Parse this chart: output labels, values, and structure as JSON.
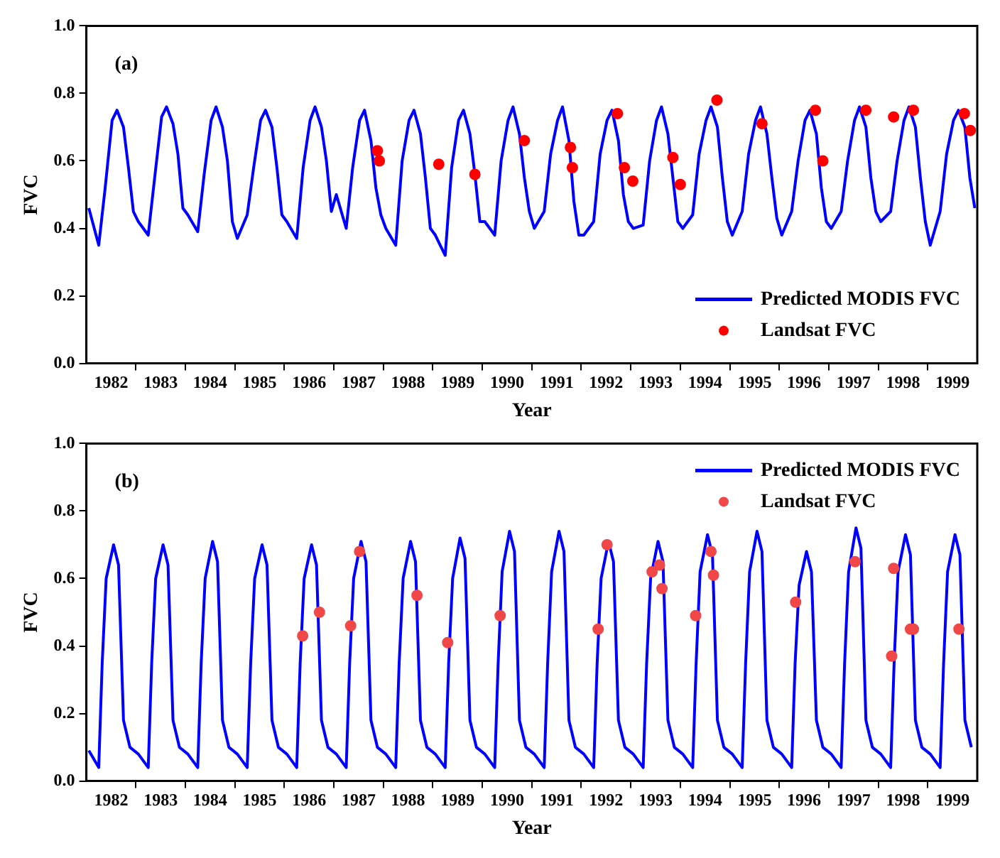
{
  "chart_data": [
    {
      "type": "line",
      "xlabel": "Year",
      "ylabel": "FVC",
      "annotations": [
        "(a)"
      ],
      "xlim": [
        1982,
        2000
      ],
      "ylim": [
        0,
        1
      ],
      "xticks": [
        {
          "value": 1982.5,
          "label": "1982"
        },
        {
          "value": 1983,
          "label": null
        },
        {
          "value": 1983.5,
          "label": "1983"
        },
        {
          "value": 1984,
          "label": null
        },
        {
          "value": 1984.5,
          "label": "1984"
        },
        {
          "value": 1985,
          "label": null
        },
        {
          "value": 1985.5,
          "label": "1985"
        },
        {
          "value": 1986,
          "label": null
        },
        {
          "value": 1986.5,
          "label": "1986"
        },
        {
          "value": 1987,
          "label": null
        },
        {
          "value": 1987.5,
          "label": "1987"
        },
        {
          "value": 1988,
          "label": null
        },
        {
          "value": 1988.5,
          "label": "1988"
        },
        {
          "value": 1989,
          "label": null
        },
        {
          "value": 1989.5,
          "label": "1989"
        },
        {
          "value": 1990,
          "label": null
        },
        {
          "value": 1990.5,
          "label": "1990"
        },
        {
          "value": 1991,
          "label": null
        },
        {
          "value": 1991.5,
          "label": "1991"
        },
        {
          "value": 1992,
          "label": null
        },
        {
          "value": 1992.5,
          "label": "1992"
        },
        {
          "value": 1993,
          "label": null
        },
        {
          "value": 1993.5,
          "label": "1993"
        },
        {
          "value": 1994,
          "label": null
        },
        {
          "value": 1994.5,
          "label": "1994"
        },
        {
          "value": 1995,
          "label": null
        },
        {
          "value": 1995.5,
          "label": "1995"
        },
        {
          "value": 1996,
          "label": null
        },
        {
          "value": 1996.5,
          "label": "1996"
        },
        {
          "value": 1997,
          "label": null
        },
        {
          "value": 1997.5,
          "label": "1997"
        },
        {
          "value": 1998,
          "label": null
        },
        {
          "value": 1998.5,
          "label": "1998"
        },
        {
          "value": 1999,
          "label": null
        },
        {
          "value": 1999.5,
          "label": "1999"
        }
      ],
      "yticks": [
        {
          "value": 0,
          "label": "0.0"
        },
        {
          "value": 0.2,
          "label": "0.2"
        },
        {
          "value": 0.4,
          "label": "0.4"
        },
        {
          "value": 0.6,
          "label": "0.6"
        },
        {
          "value": 0.8,
          "label": "0.8"
        },
        {
          "value": 1,
          "label": "1.0"
        }
      ],
      "grid": false,
      "legend": "bottom right",
      "series": [
        {
          "name": "Predicted MODIS FVC",
          "type": "line",
          "color": "#0000ff",
          "line_style": "solid",
          "x": [
            1982.05,
            1982.25,
            1982.38,
            1982.52,
            1982.62,
            1982.75,
            1982.85,
            1982.95,
            1983.05,
            1983.25,
            1983.38,
            1983.52,
            1983.62,
            1983.75,
            1983.85,
            1983.95,
            1984.05,
            1984.25,
            1984.38,
            1984.52,
            1984.62,
            1984.75,
            1984.85,
            1984.95,
            1985.05,
            1985.25,
            1985.38,
            1985.52,
            1985.62,
            1985.75,
            1985.85,
            1985.95,
            1986.05,
            1986.25,
            1986.38,
            1986.52,
            1986.62,
            1986.75,
            1986.85,
            1986.95,
            1987.05,
            1987.25,
            1987.38,
            1987.52,
            1987.62,
            1987.75,
            1987.85,
            1987.95,
            1988.05,
            1988.25,
            1988.38,
            1988.52,
            1988.62,
            1988.75,
            1988.85,
            1988.95,
            1989.05,
            1989.25,
            1989.38,
            1989.52,
            1989.62,
            1989.75,
            1989.85,
            1989.95,
            1990.05,
            1990.25,
            1990.38,
            1990.52,
            1990.62,
            1990.75,
            1990.85,
            1990.95,
            1991.05,
            1991.25,
            1991.38,
            1991.52,
            1991.62,
            1991.75,
            1991.85,
            1991.95,
            1992.05,
            1992.25,
            1992.38,
            1992.52,
            1992.62,
            1992.75,
            1992.85,
            1992.95,
            1993.05,
            1993.25,
            1993.38,
            1993.52,
            1993.62,
            1993.75,
            1993.85,
            1993.95,
            1994.05,
            1994.25,
            1994.38,
            1994.52,
            1994.62,
            1994.75,
            1994.85,
            1994.95,
            1995.05,
            1995.25,
            1995.38,
            1995.52,
            1995.62,
            1995.75,
            1995.85,
            1995.95,
            1996.05,
            1996.25,
            1996.38,
            1996.52,
            1996.62,
            1996.75,
            1996.85,
            1996.95,
            1997.05,
            1997.25,
            1997.38,
            1997.52,
            1997.62,
            1997.75,
            1997.85,
            1997.95,
            1998.05,
            1998.25,
            1998.38,
            1998.52,
            1998.62,
            1998.75,
            1998.85,
            1998.95,
            1999.05,
            1999.25,
            1999.38,
            1999.52,
            1999.62,
            1999.75,
            1999.85,
            1999.95
          ],
          "values": [
            0.46,
            0.35,
            0.52,
            0.72,
            0.75,
            0.7,
            0.58,
            0.45,
            0.42,
            0.38,
            0.55,
            0.73,
            0.76,
            0.71,
            0.62,
            0.46,
            0.44,
            0.39,
            0.56,
            0.72,
            0.76,
            0.7,
            0.6,
            0.42,
            0.37,
            0.44,
            0.58,
            0.72,
            0.75,
            0.7,
            0.58,
            0.44,
            0.42,
            0.37,
            0.58,
            0.72,
            0.76,
            0.7,
            0.6,
            0.45,
            0.5,
            0.4,
            0.58,
            0.72,
            0.75,
            0.66,
            0.52,
            0.44,
            0.4,
            0.35,
            0.6,
            0.72,
            0.75,
            0.68,
            0.55,
            0.4,
            0.38,
            0.32,
            0.58,
            0.72,
            0.75,
            0.68,
            0.56,
            0.42,
            0.42,
            0.38,
            0.6,
            0.72,
            0.76,
            0.68,
            0.55,
            0.45,
            0.4,
            0.45,
            0.62,
            0.72,
            0.76,
            0.66,
            0.48,
            0.38,
            0.38,
            0.42,
            0.62,
            0.72,
            0.75,
            0.66,
            0.5,
            0.42,
            0.4,
            0.41,
            0.6,
            0.72,
            0.76,
            0.68,
            0.55,
            0.42,
            0.4,
            0.44,
            0.62,
            0.72,
            0.76,
            0.7,
            0.55,
            0.42,
            0.38,
            0.45,
            0.62,
            0.72,
            0.76,
            0.68,
            0.55,
            0.43,
            0.38,
            0.45,
            0.6,
            0.72,
            0.75,
            0.68,
            0.52,
            0.42,
            0.4,
            0.45,
            0.6,
            0.72,
            0.76,
            0.7,
            0.55,
            0.45,
            0.42,
            0.45,
            0.6,
            0.72,
            0.76,
            0.7,
            0.55,
            0.42,
            0.35,
            0.45,
            0.62,
            0.72,
            0.75,
            0.7,
            0.55,
            0.46
          ]
        },
        {
          "name": "Landsat FVC",
          "type": "scatter",
          "color": "#ff0000",
          "marker": "circle",
          "x": [
            1987.88,
            1987.92,
            1989.12,
            1989.85,
            1990.85,
            1991.78,
            1991.82,
            1992.73,
            1992.87,
            1993.04,
            1993.85,
            1994.0,
            1994.74,
            1995.65,
            1996.73,
            1996.88,
            1997.75,
            1998.31,
            1998.71,
            1999.74,
            1999.86
          ],
          "values": [
            0.63,
            0.6,
            0.59,
            0.56,
            0.66,
            0.64,
            0.58,
            0.74,
            0.58,
            0.54,
            0.61,
            0.53,
            0.78,
            0.71,
            0.75,
            0.6,
            0.75,
            0.73,
            0.75,
            0.74,
            0.69
          ]
        }
      ]
    },
    {
      "type": "line",
      "xlabel": "Year",
      "ylabel": "FVC",
      "annotations": [
        "(b)"
      ],
      "xlim": [
        1982,
        2000
      ],
      "ylim": [
        0,
        1
      ],
      "xticks": [
        {
          "value": 1982.5,
          "label": "1982"
        },
        {
          "value": 1983,
          "label": null
        },
        {
          "value": 1983.5,
          "label": "1983"
        },
        {
          "value": 1984,
          "label": null
        },
        {
          "value": 1984.5,
          "label": "1984"
        },
        {
          "value": 1985,
          "label": null
        },
        {
          "value": 1985.5,
          "label": "1985"
        },
        {
          "value": 1986,
          "label": null
        },
        {
          "value": 1986.5,
          "label": "1986"
        },
        {
          "value": 1987,
          "label": null
        },
        {
          "value": 1987.5,
          "label": "1987"
        },
        {
          "value": 1988,
          "label": null
        },
        {
          "value": 1988.5,
          "label": "1988"
        },
        {
          "value": 1989,
          "label": null
        },
        {
          "value": 1989.5,
          "label": "1989"
        },
        {
          "value": 1990,
          "label": null
        },
        {
          "value": 1990.5,
          "label": "1990"
        },
        {
          "value": 1991,
          "label": null
        },
        {
          "value": 1991.5,
          "label": "1991"
        },
        {
          "value": 1992,
          "label": null
        },
        {
          "value": 1992.5,
          "label": "1992"
        },
        {
          "value": 1993,
          "label": null
        },
        {
          "value": 1993.5,
          "label": "1993"
        },
        {
          "value": 1994,
          "label": null
        },
        {
          "value": 1994.5,
          "label": "1994"
        },
        {
          "value": 1995,
          "label": null
        },
        {
          "value": 1995.5,
          "label": "1995"
        },
        {
          "value": 1996,
          "label": null
        },
        {
          "value": 1996.5,
          "label": "1996"
        },
        {
          "value": 1997,
          "label": null
        },
        {
          "value": 1997.5,
          "label": "1997"
        },
        {
          "value": 1998,
          "label": null
        },
        {
          "value": 1998.5,
          "label": "1998"
        },
        {
          "value": 1999,
          "label": null
        },
        {
          "value": 1999.5,
          "label": "1999"
        }
      ],
      "yticks": [
        {
          "value": 0,
          "label": "0.0"
        },
        {
          "value": 0.2,
          "label": "0.2"
        },
        {
          "value": 0.4,
          "label": "0.4"
        },
        {
          "value": 0.6,
          "label": "0.6"
        },
        {
          "value": 0.8,
          "label": "0.8"
        },
        {
          "value": 1,
          "label": "1.0"
        }
      ],
      "grid": false,
      "legend": "top right",
      "series": [
        {
          "name": "Predicted MODIS FVC",
          "type": "line",
          "color": "#0000ff",
          "line_style": "solid",
          "x": [
            1982.05,
            1982.25,
            1982.32,
            1982.4,
            1982.55,
            1982.65,
            1982.75,
            1982.88,
            1983.05,
            1983.25,
            1983.32,
            1983.4,
            1983.55,
            1983.65,
            1983.75,
            1983.88,
            1984.05,
            1984.25,
            1984.32,
            1984.4,
            1984.55,
            1984.65,
            1984.75,
            1984.88,
            1985.05,
            1985.25,
            1985.32,
            1985.4,
            1985.55,
            1985.65,
            1985.75,
            1985.88,
            1986.05,
            1986.25,
            1986.32,
            1986.4,
            1986.55,
            1986.65,
            1986.75,
            1986.88,
            1987.05,
            1987.25,
            1987.32,
            1987.4,
            1987.55,
            1987.65,
            1987.75,
            1987.88,
            1988.05,
            1988.25,
            1988.32,
            1988.4,
            1988.55,
            1988.65,
            1988.75,
            1988.88,
            1989.05,
            1989.25,
            1989.32,
            1989.4,
            1989.55,
            1989.65,
            1989.75,
            1989.88,
            1990.05,
            1990.25,
            1990.32,
            1990.4,
            1990.55,
            1990.65,
            1990.75,
            1990.88,
            1991.05,
            1991.25,
            1991.32,
            1991.4,
            1991.55,
            1991.65,
            1991.75,
            1991.88,
            1992.05,
            1992.25,
            1992.32,
            1992.4,
            1992.55,
            1992.65,
            1992.75,
            1992.88,
            1993.05,
            1993.25,
            1993.32,
            1993.4,
            1993.55,
            1993.65,
            1993.75,
            1993.88,
            1994.05,
            1994.25,
            1994.32,
            1994.4,
            1994.55,
            1994.65,
            1994.75,
            1994.88,
            1995.05,
            1995.25,
            1995.32,
            1995.4,
            1995.55,
            1995.65,
            1995.75,
            1995.88,
            1996.05,
            1996.25,
            1996.32,
            1996.4,
            1996.55,
            1996.65,
            1996.75,
            1996.88,
            1997.05,
            1997.25,
            1997.32,
            1997.4,
            1997.55,
            1997.65,
            1997.75,
            1997.88,
            1998.05,
            1998.25,
            1998.32,
            1998.4,
            1998.55,
            1998.65,
            1998.75,
            1998.88,
            1999.05,
            1999.25,
            1999.32,
            1999.4,
            1999.55,
            1999.65,
            1999.75,
            1999.88
          ],
          "values": [
            0.09,
            0.04,
            0.35,
            0.6,
            0.7,
            0.64,
            0.18,
            0.1,
            0.08,
            0.04,
            0.35,
            0.6,
            0.7,
            0.64,
            0.18,
            0.1,
            0.08,
            0.04,
            0.35,
            0.6,
            0.71,
            0.65,
            0.18,
            0.1,
            0.08,
            0.04,
            0.35,
            0.6,
            0.7,
            0.64,
            0.18,
            0.1,
            0.08,
            0.04,
            0.35,
            0.6,
            0.7,
            0.64,
            0.18,
            0.1,
            0.08,
            0.04,
            0.35,
            0.6,
            0.71,
            0.65,
            0.18,
            0.1,
            0.08,
            0.04,
            0.35,
            0.6,
            0.71,
            0.65,
            0.18,
            0.1,
            0.08,
            0.04,
            0.35,
            0.6,
            0.72,
            0.66,
            0.18,
            0.1,
            0.08,
            0.04,
            0.35,
            0.62,
            0.74,
            0.68,
            0.18,
            0.1,
            0.08,
            0.04,
            0.35,
            0.62,
            0.74,
            0.68,
            0.18,
            0.1,
            0.08,
            0.04,
            0.35,
            0.6,
            0.71,
            0.65,
            0.18,
            0.1,
            0.08,
            0.04,
            0.35,
            0.6,
            0.71,
            0.65,
            0.18,
            0.1,
            0.08,
            0.04,
            0.35,
            0.62,
            0.73,
            0.67,
            0.18,
            0.1,
            0.08,
            0.04,
            0.35,
            0.62,
            0.74,
            0.68,
            0.18,
            0.1,
            0.08,
            0.04,
            0.35,
            0.58,
            0.68,
            0.62,
            0.18,
            0.1,
            0.08,
            0.04,
            0.35,
            0.62,
            0.75,
            0.69,
            0.18,
            0.1,
            0.08,
            0.04,
            0.35,
            0.62,
            0.73,
            0.67,
            0.18,
            0.1,
            0.08,
            0.04,
            0.35,
            0.62,
            0.73,
            0.67,
            0.18,
            0.1
          ]
        },
        {
          "name": "Landsat FVC",
          "type": "scatter",
          "color": "#f04848",
          "marker": "circle",
          "x": [
            1986.37,
            1986.71,
            1987.34,
            1987.52,
            1988.68,
            1989.3,
            1990.36,
            1992.34,
            1992.52,
            1993.43,
            1993.58,
            1993.63,
            1994.31,
            1994.62,
            1994.67,
            1996.33,
            1997.53,
            1998.27,
            1998.31,
            1998.65,
            1998.71,
            1999.63
          ],
          "values": [
            0.43,
            0.5,
            0.46,
            0.68,
            0.55,
            0.41,
            0.49,
            0.45,
            0.7,
            0.62,
            0.64,
            0.57,
            0.49,
            0.68,
            0.61,
            0.53,
            0.65,
            0.37,
            0.63,
            0.45,
            0.45,
            0.45
          ]
        }
      ]
    }
  ]
}
